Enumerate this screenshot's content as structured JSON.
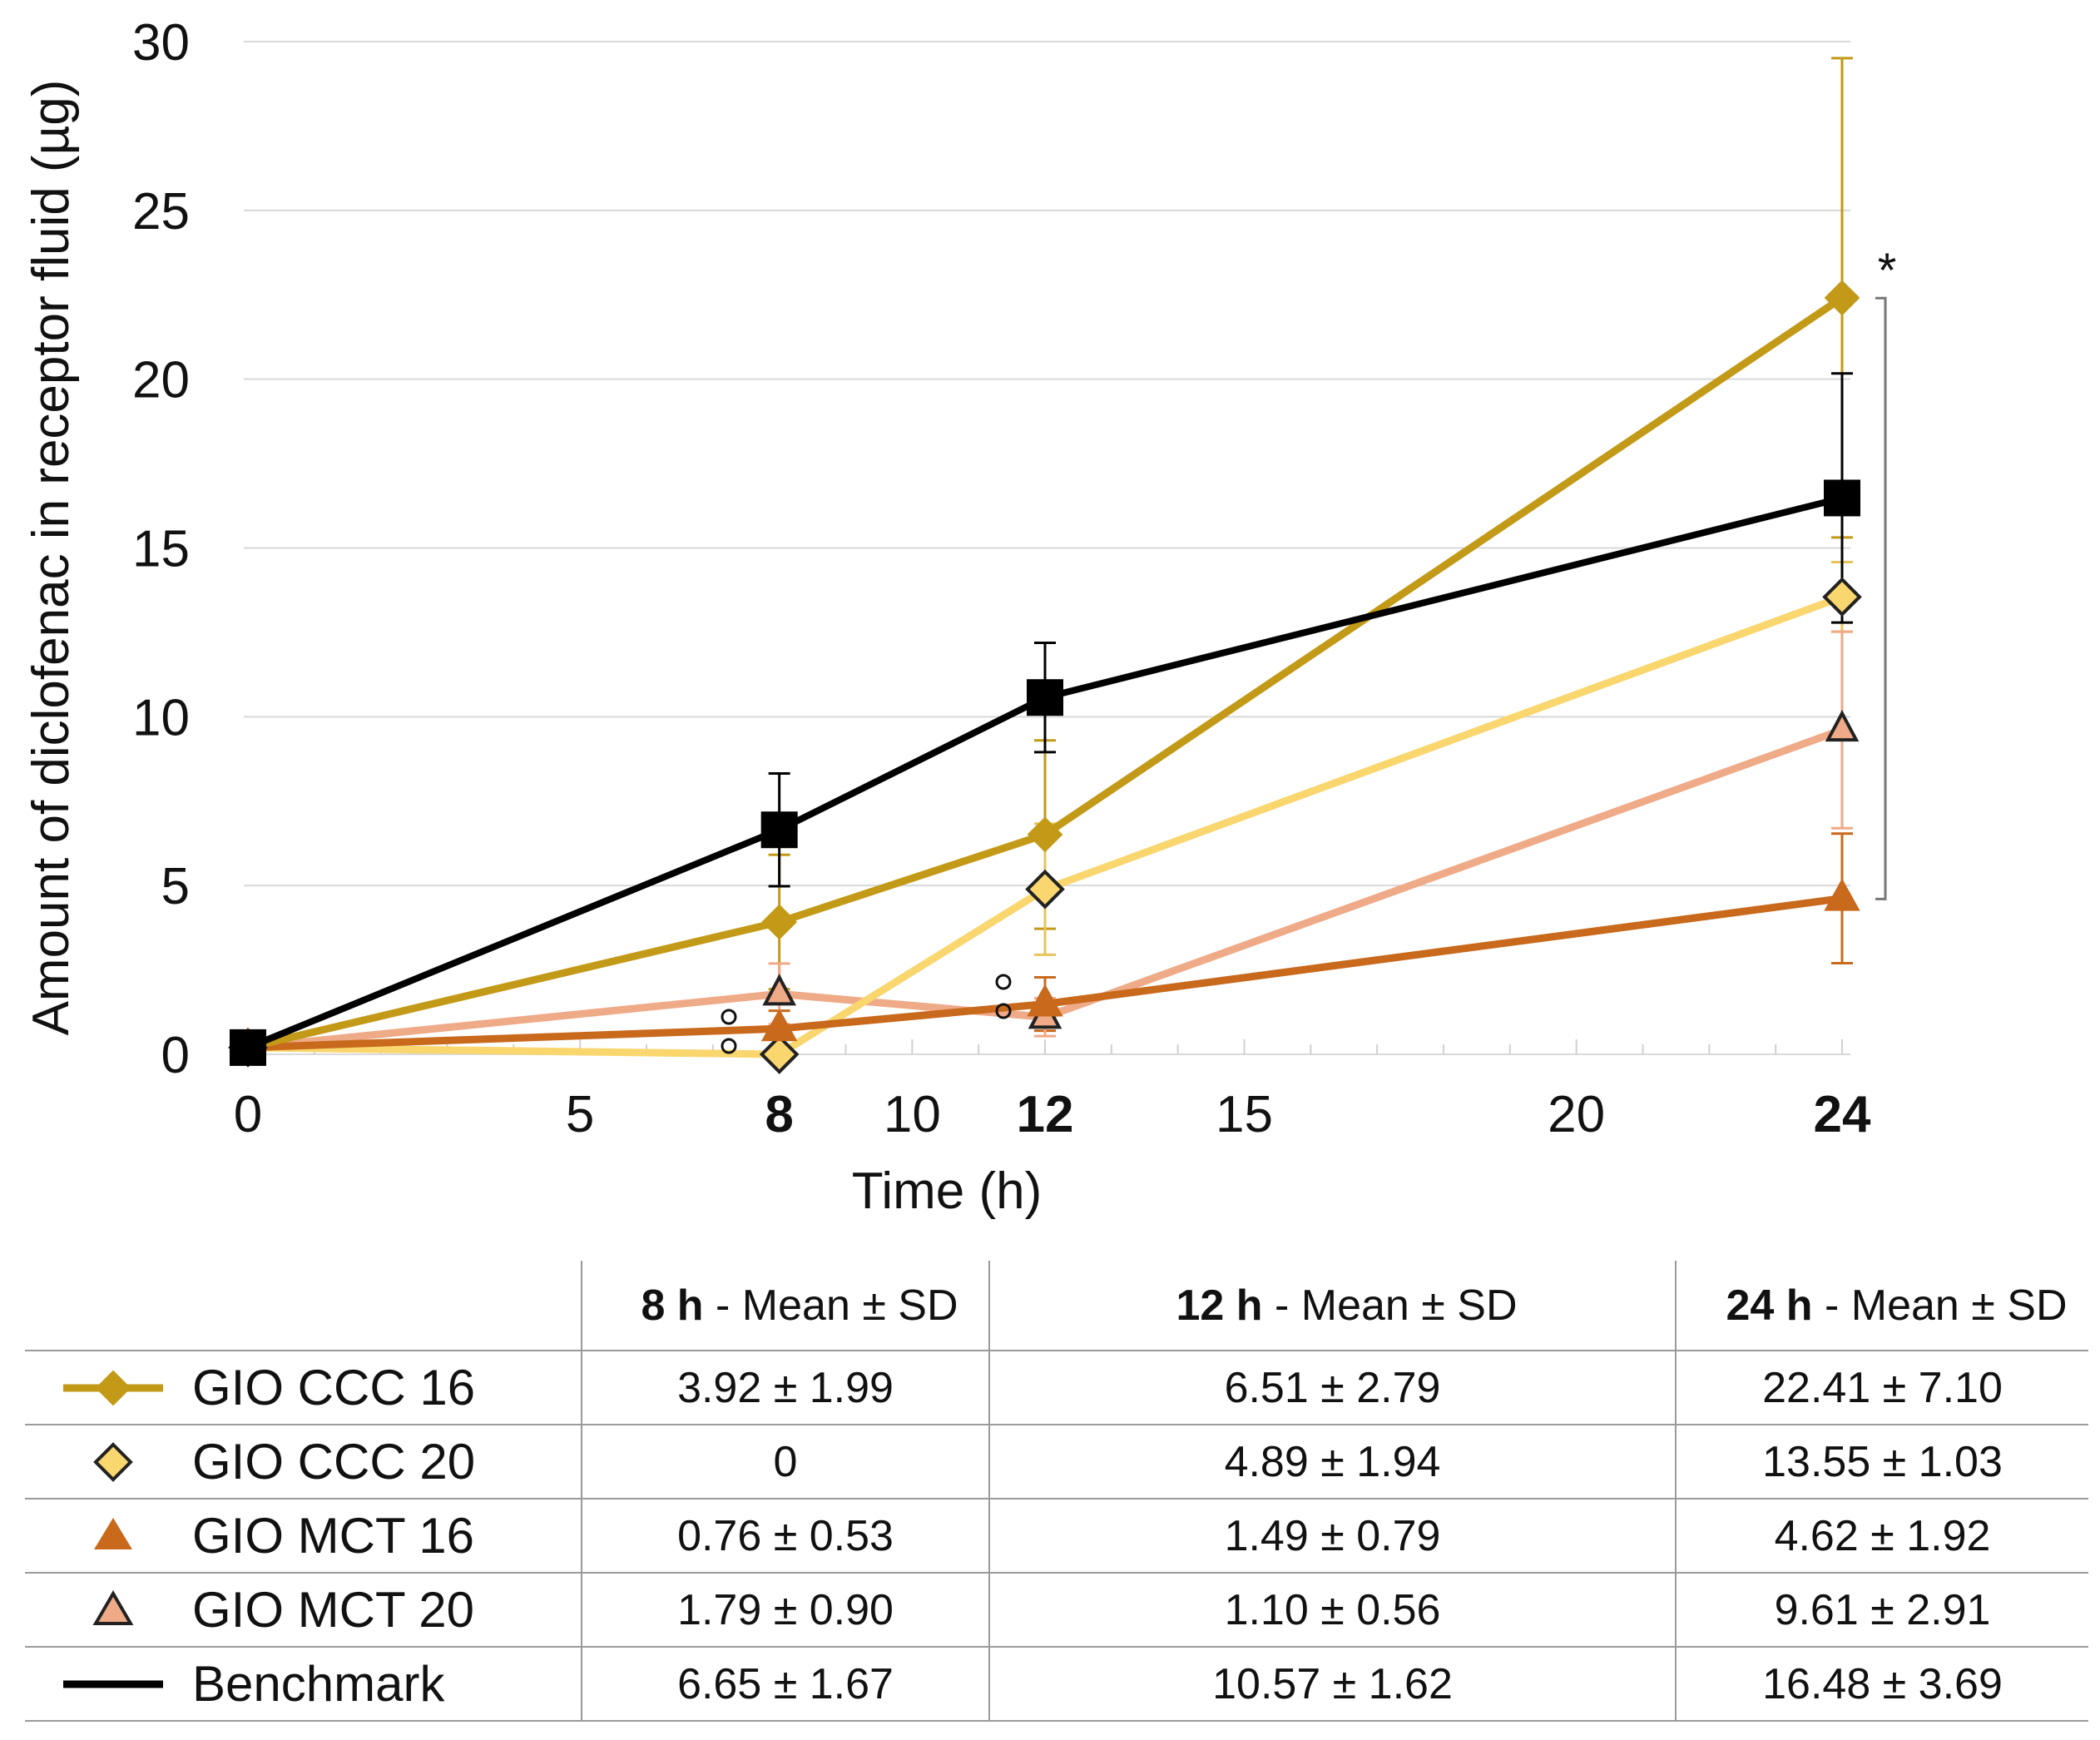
{
  "chart_data": {
    "type": "line",
    "xlabel": "Time (h)",
    "ylabel": "Amount of diclofenac in receptor fluid (µg)",
    "xlim": [
      0,
      24
    ],
    "ylim": [
      0,
      30
    ],
    "x_ticks": [
      0,
      5,
      10,
      15,
      20
    ],
    "x_ticks_bold": [
      8,
      12,
      24
    ],
    "y_ticks": [
      0,
      5,
      10,
      15,
      20,
      25,
      30
    ],
    "grid": "horizontal",
    "significance_marker": "*",
    "x": [
      0,
      8,
      12,
      24
    ],
    "series": [
      {
        "name": "GIO CCC 16",
        "color": "#C39A17",
        "marker": "diamond-filled",
        "values": [
          0.2,
          3.92,
          6.51,
          22.41
        ],
        "sd": [
          0,
          1.99,
          2.79,
          7.1
        ]
      },
      {
        "name": "GIO CCC 20",
        "color": "#F9D66E",
        "marker": "diamond-open",
        "values": [
          0.2,
          0,
          4.89,
          13.55
        ],
        "sd": [
          0,
          0,
          1.94,
          1.03
        ]
      },
      {
        "name": "GIO MCT 16",
        "color": "#C8691C",
        "marker": "triangle-filled",
        "values": [
          0.2,
          0.76,
          1.49,
          4.62
        ],
        "sd": [
          0,
          0.53,
          0.79,
          1.92
        ]
      },
      {
        "name": "GIO MCT 20",
        "color": "#EFAA88",
        "marker": "triangle-open",
        "values": [
          0.2,
          1.79,
          1.1,
          9.61
        ],
        "sd": [
          0,
          0.9,
          0.56,
          2.91
        ]
      },
      {
        "name": "Benchmark",
        "color": "#000000",
        "marker": "square",
        "values": [
          0.2,
          6.65,
          10.57,
          16.48
        ],
        "sd": [
          0,
          1.67,
          1.62,
          3.69
        ]
      }
    ]
  },
  "table": {
    "headers": [
      {
        "bold": "8 h",
        "rest": " - Mean ± SD"
      },
      {
        "bold": "12 h",
        "rest": " - Mean ± SD"
      },
      {
        "bold": "24 h",
        "rest": " - Mean ± SD"
      }
    ],
    "rows": [
      {
        "label": "GIO CCC 16",
        "swatch": "diamond-filled-line",
        "color": "#C39A17",
        "v8": "3.92 ± 1.99",
        "v12": "6.51 ± 2.79",
        "v24": "22.41 ± 7.10"
      },
      {
        "label": "GIO CCC 20",
        "swatch": "diamond-open",
        "color": "#F9D66E",
        "v8": "0",
        "v12": "4.89 ± 1.94",
        "v24": "13.55 ± 1.03"
      },
      {
        "label": "GIO MCT 16",
        "swatch": "triangle-filled",
        "color": "#C8691C",
        "v8": "0.76 ± 0.53",
        "v12": "1.49 ± 0.79",
        "v24": "4.62 ± 1.92"
      },
      {
        "label": "GIO MCT 20",
        "swatch": "triangle-open",
        "color": "#EFAA88",
        "v8": "1.79 ± 0.90",
        "v12": "1.10 ± 0.56",
        "v24": "9.61 ± 2.91"
      },
      {
        "label": "Benchmark",
        "swatch": "square-line",
        "color": "#000000",
        "v8": "6.65 ± 1.67",
        "v12": "10.57 ± 1.62",
        "v24": "16.48 ± 3.69"
      }
    ]
  }
}
